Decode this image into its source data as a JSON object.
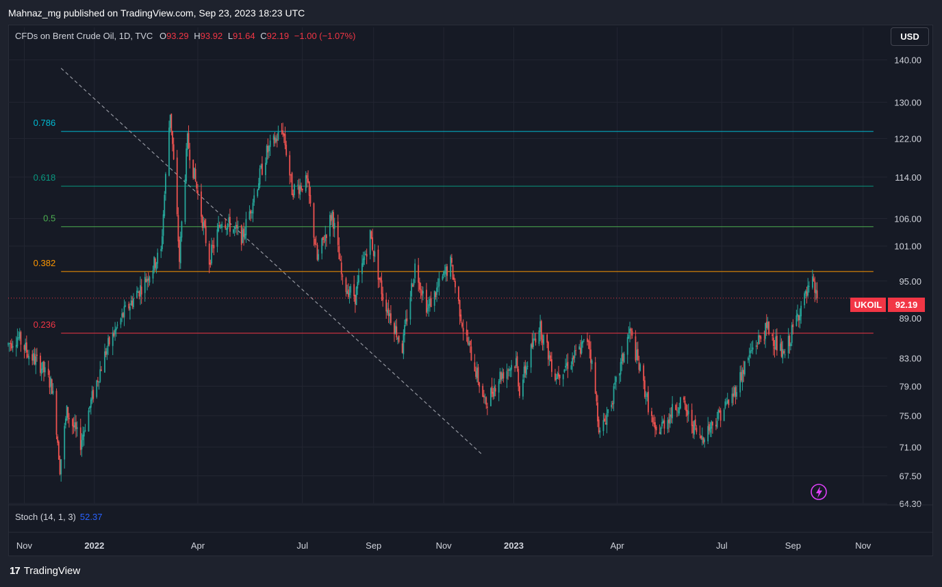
{
  "header": {
    "publish_text": "Mahnaz_mg published on TradingView.com, Sep 23, 2023 18:23 UTC"
  },
  "legend": {
    "symbol_text": "CFDs on Brent Crude Oil, 1D, TVC",
    "open_label": "O",
    "open_value": "93.29",
    "high_label": "H",
    "high_value": "93.92",
    "low_label": "L",
    "low_value": "91.64",
    "close_label": "C",
    "close_value": "92.19",
    "change_value": "−1.00 (−1.07%)"
  },
  "currency_button": "USD",
  "price_tag": {
    "symbol": "UKOIL",
    "value": "92.19"
  },
  "indicator": {
    "label": "Stoch (14, 1, 3)",
    "value": "52.37"
  },
  "footer": {
    "brand": "TradingView",
    "logo_glyph": "17"
  },
  "colors": {
    "up": "#26a69a",
    "down": "#ef5350",
    "price_line": "#f23645",
    "fib_0236": "#f23645",
    "fib_0382": "#ff9800",
    "fib_05": "#4caf50",
    "fib_0618": "#089981",
    "fib_0786": "#00bcd4",
    "trendline": "#9598a1",
    "stoch": "#2962ff",
    "alert_icon": "#e040fb"
  },
  "icons": {
    "alert": "lightning-bolt-icon"
  },
  "chart_data": {
    "type": "candlestick",
    "symbol": "UKOIL",
    "interval": "1D",
    "y_scale": "log",
    "ylim": [
      64.3,
      143
    ],
    "y_ticks": [
      "140.00",
      "130.00",
      "122.00",
      "114.00",
      "106.00",
      "101.00",
      "95.00",
      "89.00",
      "83.00",
      "79.00",
      "75.00",
      "71.00",
      "67.50",
      "64.30"
    ],
    "x_ticks": [
      {
        "label": "Nov",
        "date": "2021-11-01",
        "bold": false
      },
      {
        "label": "2022",
        "date": "2022-01-01",
        "bold": true
      },
      {
        "label": "Apr",
        "date": "2022-04-01",
        "bold": false
      },
      {
        "label": "Jul",
        "date": "2022-07-01",
        "bold": false
      },
      {
        "label": "Sep",
        "date": "2022-09-01",
        "bold": false
      },
      {
        "label": "Nov",
        "date": "2022-11-01",
        "bold": false
      },
      {
        "label": "2023",
        "date": "2023-01-01",
        "bold": true
      },
      {
        "label": "Apr",
        "date": "2023-04-01",
        "bold": false
      },
      {
        "label": "Jul",
        "date": "2023-07-01",
        "bold": false
      },
      {
        "label": "Sep",
        "date": "2023-09-01",
        "bold": false
      },
      {
        "label": "Nov",
        "date": "2023-11-01",
        "bold": false
      }
    ],
    "xlim": [
      "2021-10-18",
      "2023-11-22"
    ],
    "fib_levels": [
      {
        "label": "0.786",
        "price": 123.5,
        "color": "#00bcd4"
      },
      {
        "label": "0.618",
        "price": 112.2,
        "color": "#089981"
      },
      {
        "label": "0.5",
        "price": 104.5,
        "color": "#4caf50"
      },
      {
        "label": "0.382",
        "price": 96.6,
        "color": "#ff9800"
      },
      {
        "label": "0.236",
        "price": 86.7,
        "color": "#f23645"
      }
    ],
    "fib_start": "2021-12-03",
    "fib_end": "2023-11-10",
    "trendline": {
      "from": {
        "date": "2021-12-03",
        "price": 138
      },
      "to": {
        "date": "2022-12-05",
        "price": 70
      }
    },
    "last_price": 92.19,
    "price_path": [
      {
        "date": "2021-10-18",
        "price": 85.0
      },
      {
        "date": "2021-10-26",
        "price": 86.2
      },
      {
        "date": "2021-11-05",
        "price": 83.5
      },
      {
        "date": "2021-11-15",
        "price": 82.0
      },
      {
        "date": "2021-11-25",
        "price": 79.0
      },
      {
        "date": "2021-11-29",
        "price": 73.5
      },
      {
        "date": "2021-12-02",
        "price": 68.5
      },
      {
        "date": "2021-12-08",
        "price": 75.5
      },
      {
        "date": "2021-12-20",
        "price": 71.5
      },
      {
        "date": "2021-12-31",
        "price": 78.0
      },
      {
        "date": "2022-01-12",
        "price": 84.5
      },
      {
        "date": "2022-01-26",
        "price": 89.5
      },
      {
        "date": "2022-02-14",
        "price": 95.0
      },
      {
        "date": "2022-02-28",
        "price": 100.0
      },
      {
        "date": "2022-03-08",
        "price": 128.0
      },
      {
        "date": "2022-03-16",
        "price": 98.5
      },
      {
        "date": "2022-03-23",
        "price": 121.5
      },
      {
        "date": "2022-04-11",
        "price": 98.5
      },
      {
        "date": "2022-04-22",
        "price": 106.0
      },
      {
        "date": "2022-05-10",
        "price": 102.5
      },
      {
        "date": "2022-05-31",
        "price": 119.0
      },
      {
        "date": "2022-06-14",
        "price": 124.0
      },
      {
        "date": "2022-06-22",
        "price": 111.5
      },
      {
        "date": "2022-07-05",
        "price": 113.0
      },
      {
        "date": "2022-07-14",
        "price": 98.5
      },
      {
        "date": "2022-07-27",
        "price": 107.0
      },
      {
        "date": "2022-08-05",
        "price": 94.5
      },
      {
        "date": "2022-08-16",
        "price": 92.5
      },
      {
        "date": "2022-08-29",
        "price": 103.0
      },
      {
        "date": "2022-09-09",
        "price": 92.5
      },
      {
        "date": "2022-09-26",
        "price": 84.5
      },
      {
        "date": "2022-10-07",
        "price": 97.5
      },
      {
        "date": "2022-10-18",
        "price": 90.5
      },
      {
        "date": "2022-11-07",
        "price": 98.0
      },
      {
        "date": "2022-11-18",
        "price": 87.5
      },
      {
        "date": "2022-12-07",
        "price": 76.5
      },
      {
        "date": "2022-12-20",
        "price": 80.5
      },
      {
        "date": "2023-01-03",
        "price": 82.5
      },
      {
        "date": "2023-01-06",
        "price": 78.5
      },
      {
        "date": "2023-01-23",
        "price": 88.0
      },
      {
        "date": "2023-02-06",
        "price": 80.5
      },
      {
        "date": "2023-02-22",
        "price": 83.0
      },
      {
        "date": "2023-03-07",
        "price": 86.0
      },
      {
        "date": "2023-03-17",
        "price": 72.5
      },
      {
        "date": "2023-03-29",
        "price": 78.0
      },
      {
        "date": "2023-04-12",
        "price": 87.0
      },
      {
        "date": "2023-05-04",
        "price": 72.5
      },
      {
        "date": "2023-05-26",
        "price": 77.0
      },
      {
        "date": "2023-06-12",
        "price": 72.0
      },
      {
        "date": "2023-06-23",
        "price": 74.0
      },
      {
        "date": "2023-07-10",
        "price": 77.5
      },
      {
        "date": "2023-07-28",
        "price": 84.5
      },
      {
        "date": "2023-08-10",
        "price": 87.5
      },
      {
        "date": "2023-08-24",
        "price": 83.0
      },
      {
        "date": "2023-09-07",
        "price": 90.5
      },
      {
        "date": "2023-09-18",
        "price": 94.5
      },
      {
        "date": "2023-09-22",
        "price": 92.19
      }
    ]
  }
}
